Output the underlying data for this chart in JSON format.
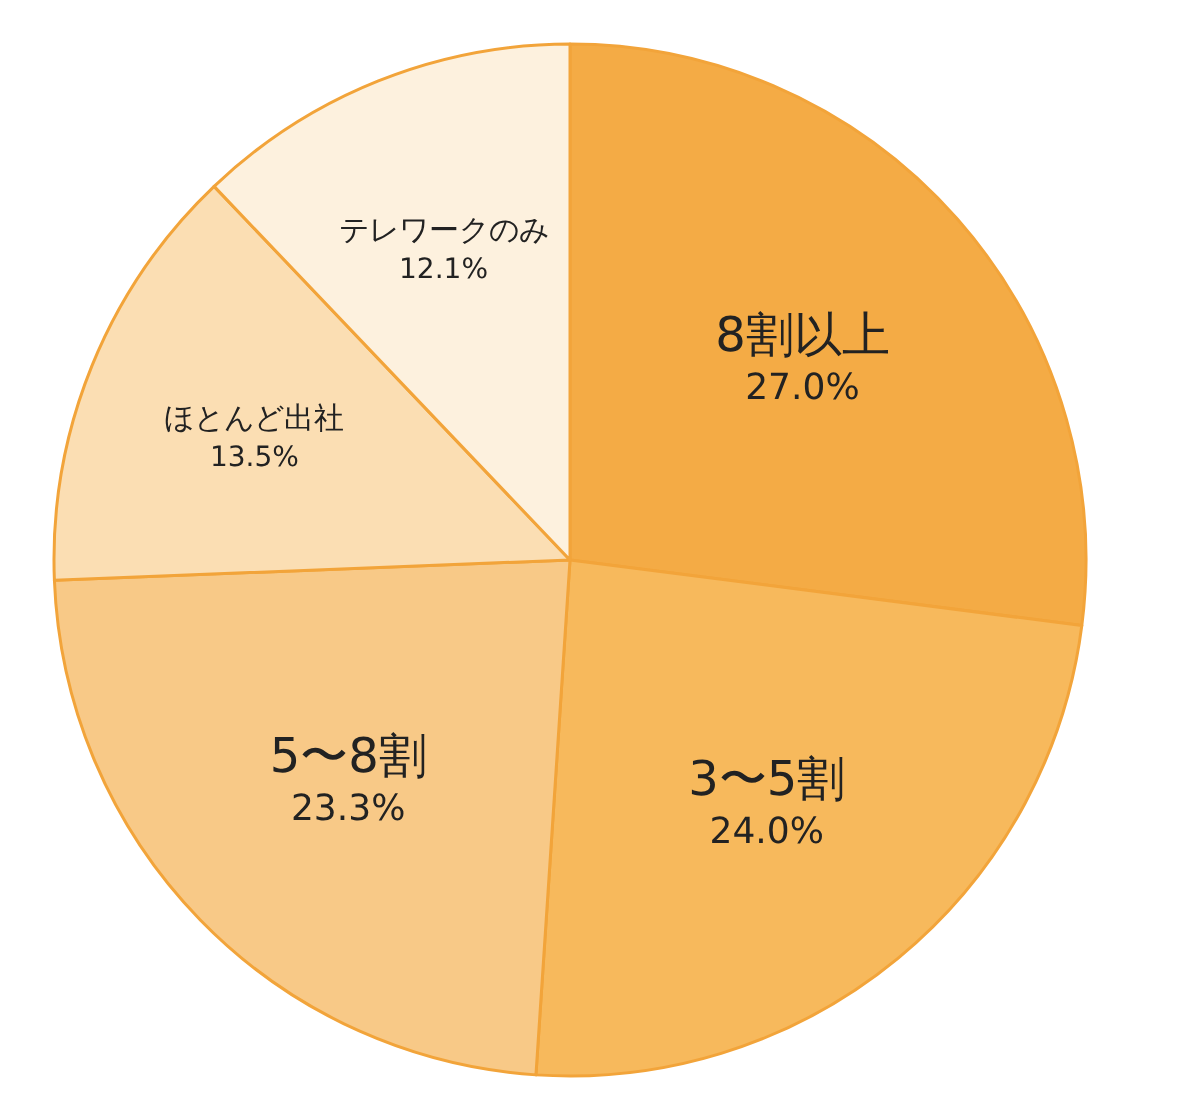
{
  "chart_data": {
    "type": "pie",
    "categories": [
      "8割以上",
      "3〜5割",
      "5〜8割",
      "ほとんど出社",
      "テレワークのみ"
    ],
    "values": [
      27.0,
      24.0,
      23.3,
      13.5,
      12.1
    ],
    "colors": [
      "#f4ab45",
      "#f7b95c",
      "#f8c987",
      "#fbdeb3",
      "#fdf1de"
    ],
    "value_labels": [
      "27.0%",
      "24.0%",
      "23.3%",
      "13.5%",
      "12.1%"
    ]
  }
}
